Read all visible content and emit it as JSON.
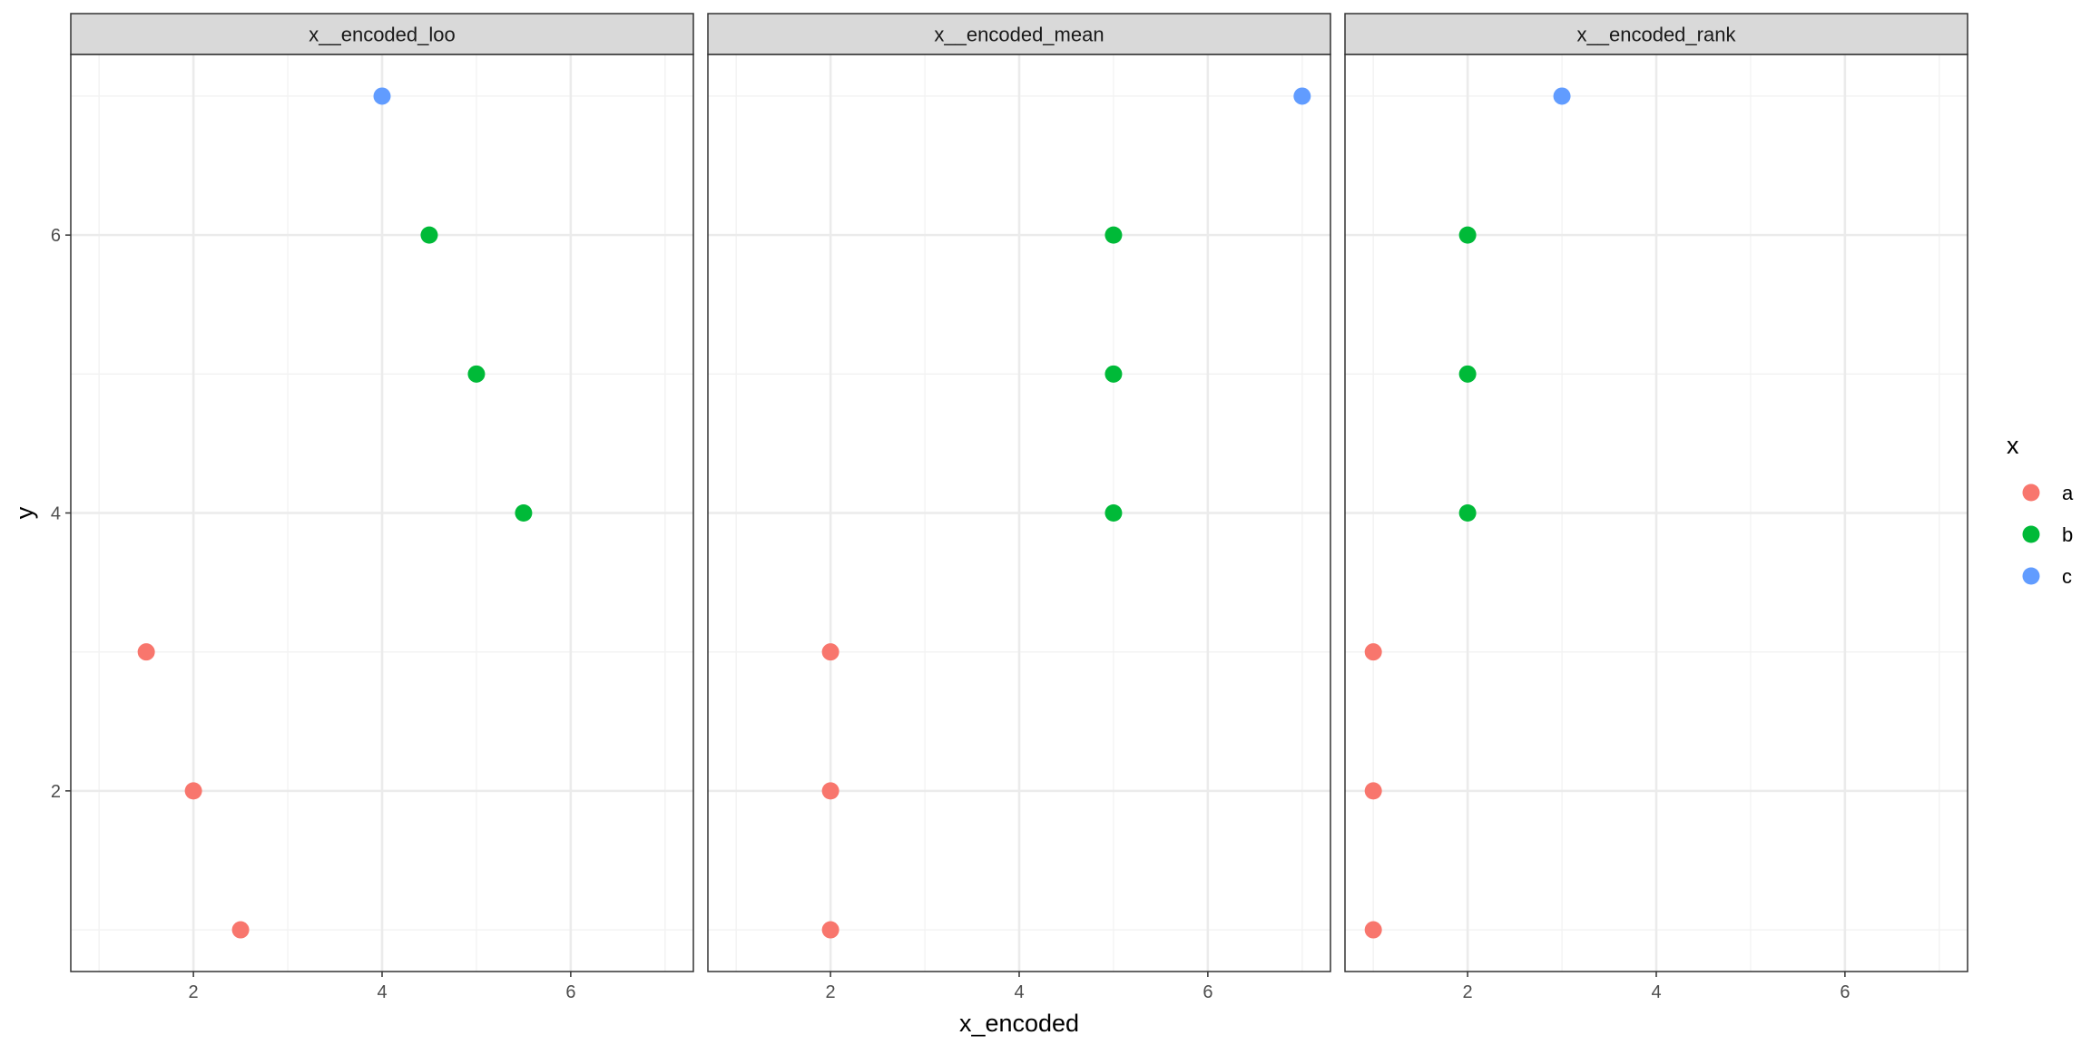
{
  "chart_data": {
    "type": "scatter",
    "xlabel": "x_encoded",
    "ylabel": "y",
    "xlim": [
      0.7,
      7.3
    ],
    "ylim": [
      0.7,
      7.3
    ],
    "x_ticks": [
      2,
      4,
      6
    ],
    "y_ticks": [
      2,
      4,
      6
    ],
    "grid": true,
    "legend": {
      "title": "x",
      "placement": "right",
      "entries": [
        {
          "label": "a",
          "color": "#F8766D"
        },
        {
          "label": "b",
          "color": "#00BA38"
        },
        {
          "label": "c",
          "color": "#619CFF"
        }
      ]
    },
    "panels": [
      {
        "title": "x__encoded_loo",
        "points": [
          {
            "group": "a",
            "x": 2.5,
            "y": 1
          },
          {
            "group": "a",
            "x": 2.0,
            "y": 2
          },
          {
            "group": "a",
            "x": 1.5,
            "y": 3
          },
          {
            "group": "b",
            "x": 5.5,
            "y": 4
          },
          {
            "group": "b",
            "x": 5.0,
            "y": 5
          },
          {
            "group": "b",
            "x": 4.5,
            "y": 6
          },
          {
            "group": "c",
            "x": 4.0,
            "y": 7
          }
        ]
      },
      {
        "title": "x__encoded_mean",
        "points": [
          {
            "group": "a",
            "x": 2,
            "y": 1
          },
          {
            "group": "a",
            "x": 2,
            "y": 2
          },
          {
            "group": "a",
            "x": 2,
            "y": 3
          },
          {
            "group": "b",
            "x": 5,
            "y": 4
          },
          {
            "group": "b",
            "x": 5,
            "y": 5
          },
          {
            "group": "b",
            "x": 5,
            "y": 6
          },
          {
            "group": "c",
            "x": 7,
            "y": 7
          }
        ]
      },
      {
        "title": "x__encoded_rank",
        "points": [
          {
            "group": "a",
            "x": 1,
            "y": 1
          },
          {
            "group": "a",
            "x": 1,
            "y": 2
          },
          {
            "group": "a",
            "x": 1,
            "y": 3
          },
          {
            "group": "b",
            "x": 2,
            "y": 4
          },
          {
            "group": "b",
            "x": 2,
            "y": 5
          },
          {
            "group": "b",
            "x": 2,
            "y": 6
          },
          {
            "group": "c",
            "x": 3,
            "y": 7
          }
        ]
      }
    ]
  }
}
